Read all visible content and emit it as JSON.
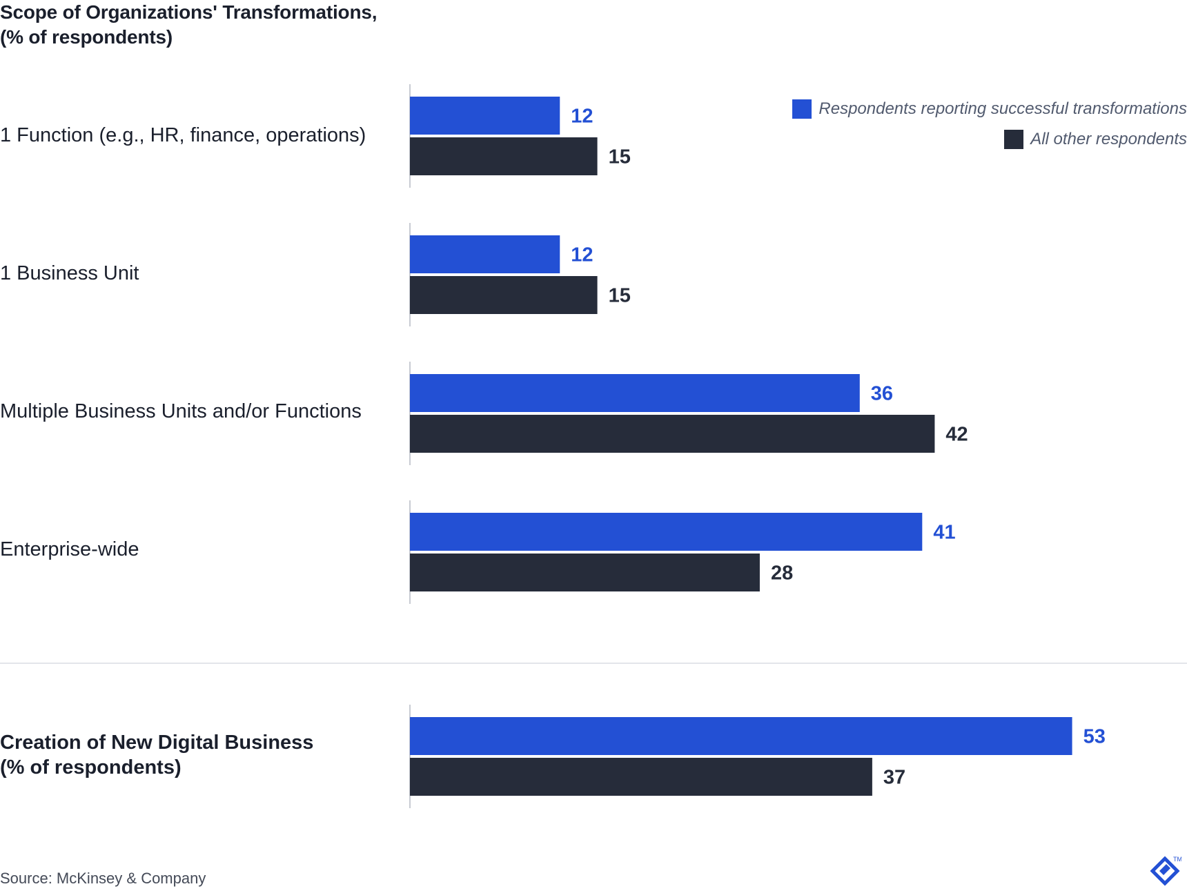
{
  "chart_data": {
    "type": "bar",
    "orientation": "horizontal",
    "title": "Scope of Organizations' Transformations, (% of respondents)",
    "title_lines": [
      "Scope of Organizations' Transformations,",
      "(% of respondents)"
    ],
    "categories": [
      "1 Function (e.g., HR, finance, operations)",
      "1 Business Unit",
      "Multiple Business Units and/or Functions",
      "Enterprise-wide"
    ],
    "second_group": {
      "label_lines": [
        "Creation of New Digital Business",
        "(% of respondents)"
      ],
      "values": [
        53,
        37
      ]
    },
    "series": [
      {
        "name": "Respondents reporting successful transformations",
        "color": "#2350d4",
        "label_color": "#2350d4",
        "values": [
          12,
          12,
          36,
          41
        ]
      },
      {
        "name": "All other respondents",
        "color": "#262c3a",
        "label_color": "#262c3a",
        "values": [
          15,
          15,
          42,
          28
        ]
      }
    ],
    "xlim": [
      0,
      57
    ],
    "grid": false,
    "legend_position": "top-right",
    "source": "Source: McKinsey & Company"
  },
  "logo_mark": "TM"
}
